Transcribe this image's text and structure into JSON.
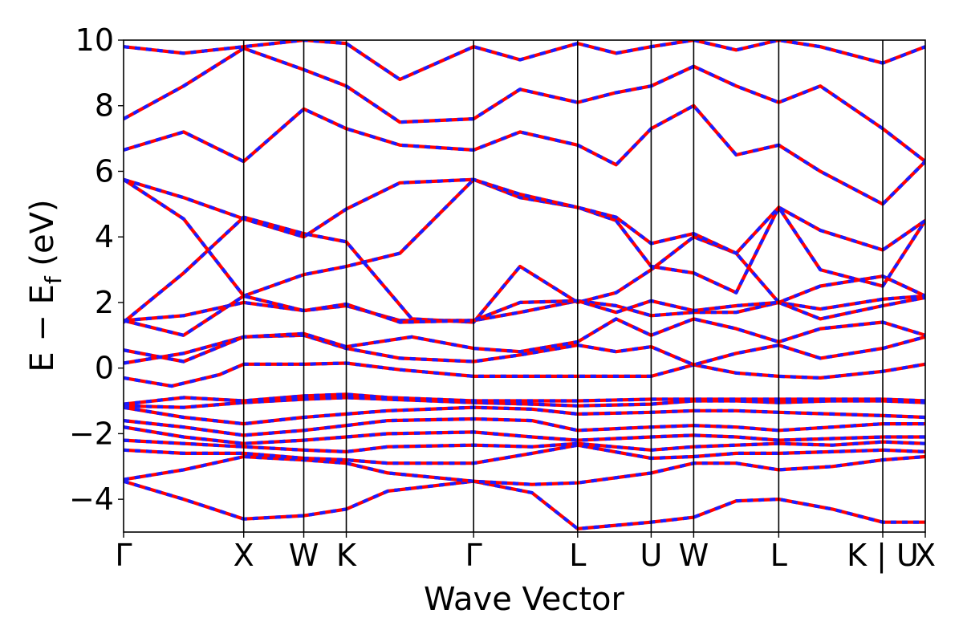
{
  "chart_data": {
    "type": "line",
    "xlabel": "Wave Vector",
    "ylabel": "E − E",
    "ylabel_sub": "f",
    "ylabel_unit": " (eV)",
    "ylim": [
      -5,
      10
    ],
    "yticks": [
      10,
      8,
      6,
      4,
      2,
      0,
      -2,
      -4
    ],
    "ytick_labels": [
      "10",
      "8",
      "6",
      "4",
      "2",
      "0",
      "−2",
      "−4"
    ],
    "grid": false,
    "k_points": [
      {
        "label": "Γ",
        "pos": 0.0
      },
      {
        "label": "X",
        "pos": 1.0
      },
      {
        "label": "W",
        "pos": 1.5
      },
      {
        "label": "K",
        "pos": 1.854
      },
      {
        "label": "Γ",
        "pos": 2.914
      },
      {
        "label": "L",
        "pos": 3.78
      },
      {
        "label": "U",
        "pos": 4.392
      },
      {
        "label": "W",
        "pos": 4.746
      },
      {
        "label": "L",
        "pos": 5.454
      },
      {
        "label": "K | U",
        "pos": 6.32
      },
      {
        "label": "X",
        "pos": 6.674
      }
    ],
    "series_style": {
      "line": "#ff0000",
      "overlay_dashed": "#1b1bff"
    },
    "bands": [
      {
        "x": [
          0,
          0.5,
          1.0,
          1.5,
          1.854,
          2.2,
          2.914,
          3.4,
          3.78,
          4.392,
          4.746,
          5.1,
          5.454,
          5.9,
          6.32,
          6.674
        ],
        "y": [
          -3.45,
          -4.0,
          -4.6,
          -4.5,
          -4.3,
          -3.75,
          -3.45,
          -3.8,
          -4.9,
          -4.7,
          -4.55,
          -4.05,
          -4.0,
          -4.3,
          -4.7,
          -4.7
        ]
      },
      {
        "x": [
          0,
          0.5,
          1.0,
          1.5,
          1.854,
          2.2,
          2.914,
          3.4,
          3.78,
          4.392,
          4.746,
          5.1,
          5.454,
          5.9,
          6.32,
          6.674
        ],
        "y": [
          -3.4,
          -3.1,
          -2.7,
          -2.8,
          -2.9,
          -3.2,
          -3.45,
          -3.55,
          -3.5,
          -3.2,
          -2.9,
          -2.9,
          -3.1,
          -3.0,
          -2.8,
          -2.7
        ]
      },
      {
        "x": [
          0,
          0.5,
          1.0,
          1.5,
          1.854,
          2.2,
          2.914,
          3.4,
          3.78,
          4.392,
          4.746,
          5.1,
          5.454,
          5.9,
          6.32,
          6.674
        ],
        "y": [
          -2.5,
          -2.6,
          -2.6,
          -2.75,
          -2.8,
          -2.9,
          -2.9,
          -2.6,
          -2.35,
          -2.75,
          -2.7,
          -2.6,
          -2.6,
          -2.55,
          -2.5,
          -2.55
        ]
      },
      {
        "x": [
          0,
          0.5,
          1.0,
          1.5,
          1.854,
          2.2,
          2.914,
          3.4,
          3.78,
          4.392,
          4.746,
          5.1,
          5.454,
          5.9,
          6.32,
          6.674
        ],
        "y": [
          -2.2,
          -2.3,
          -2.4,
          -2.5,
          -2.55,
          -2.4,
          -2.35,
          -2.4,
          -2.3,
          -2.5,
          -2.4,
          -2.35,
          -2.3,
          -2.35,
          -2.25,
          -2.3
        ]
      },
      {
        "x": [
          0,
          0.5,
          1.0,
          1.5,
          1.854,
          2.2,
          2.914,
          3.4,
          3.78,
          4.392,
          4.746,
          5.1,
          5.454,
          5.9,
          6.32,
          6.674
        ],
        "y": [
          -1.8,
          -2.1,
          -2.3,
          -2.2,
          -2.1,
          -2.0,
          -1.95,
          -2.1,
          -2.2,
          -2.1,
          -2.05,
          -2.1,
          -2.2,
          -2.15,
          -2.1,
          -2.1
        ]
      },
      {
        "x": [
          0,
          0.5,
          1.0,
          1.5,
          1.854,
          2.2,
          2.914,
          3.4,
          3.78,
          4.392,
          4.746,
          5.1,
          5.454,
          5.9,
          6.32,
          6.674
        ],
        "y": [
          -1.6,
          -1.8,
          -2.05,
          -1.9,
          -1.75,
          -1.6,
          -1.55,
          -1.6,
          -1.9,
          -1.8,
          -1.75,
          -1.8,
          -1.9,
          -1.8,
          -1.7,
          -1.7
        ]
      },
      {
        "x": [
          0,
          0.5,
          1.0,
          1.5,
          1.854,
          2.2,
          2.914,
          3.4,
          3.78,
          4.392,
          4.746,
          5.1,
          5.454,
          5.9,
          6.32,
          6.674
        ],
        "y": [
          -1.2,
          -1.5,
          -1.7,
          -1.5,
          -1.4,
          -1.3,
          -1.2,
          -1.25,
          -1.4,
          -1.35,
          -1.3,
          -1.3,
          -1.35,
          -1.4,
          -1.45,
          -1.5
        ]
      },
      {
        "x": [
          0,
          0.5,
          1.0,
          1.5,
          1.854,
          2.2,
          2.914,
          3.4,
          3.78,
          4.392,
          4.746,
          5.1,
          5.454,
          5.9,
          6.32,
          6.674
        ],
        "y": [
          -1.15,
          -1.2,
          -1.05,
          -0.95,
          -0.9,
          -0.95,
          -1.05,
          -1.1,
          -1.15,
          -1.1,
          -1.0,
          -1.0,
          -1.05,
          -1.0,
          -1.0,
          -1.05
        ]
      },
      {
        "x": [
          0,
          0.5,
          1.0,
          1.5,
          1.854,
          2.2,
          2.914,
          3.4,
          3.78,
          4.392,
          4.746,
          5.1,
          5.454,
          5.9,
          6.32,
          6.674
        ],
        "y": [
          -1.1,
          -0.9,
          -1.0,
          -0.85,
          -0.8,
          -0.9,
          -1.0,
          -1.0,
          -1.0,
          -0.95,
          -0.95,
          -0.95,
          -0.95,
          -0.95,
          -0.95,
          -1.0
        ]
      },
      {
        "x": [
          0,
          0.4,
          0.8,
          1.0,
          1.5,
          1.854,
          2.3,
          2.914,
          3.3,
          3.78,
          4.1,
          4.392,
          4.746,
          5.1,
          5.454,
          5.8,
          6.32,
          6.674
        ],
        "y": [
          -0.3,
          -0.55,
          -0.2,
          0.12,
          0.12,
          0.15,
          -0.05,
          -0.25,
          -0.25,
          -0.25,
          -0.25,
          -0.25,
          0.1,
          -0.15,
          -0.25,
          -0.3,
          -0.1,
          0.12
        ]
      },
      {
        "x": [
          0,
          0.5,
          1.0,
          1.5,
          1.854,
          2.3,
          2.914,
          3.3,
          3.78,
          4.1,
          4.392,
          4.746,
          5.1,
          5.454,
          5.8,
          6.32,
          6.674
        ],
        "y": [
          0.15,
          0.45,
          0.95,
          1.0,
          0.6,
          0.3,
          0.2,
          0.4,
          0.7,
          0.5,
          0.65,
          0.1,
          0.45,
          0.7,
          0.3,
          0.6,
          0.95
        ]
      },
      {
        "x": [
          0,
          0.5,
          1.0,
          1.5,
          1.854,
          2.4,
          2.914,
          3.3,
          3.78,
          4.1,
          4.392,
          4.746,
          5.1,
          5.454,
          5.8,
          6.32,
          6.674
        ],
        "y": [
          0.55,
          0.2,
          0.95,
          1.05,
          0.65,
          0.95,
          0.6,
          0.5,
          0.8,
          1.5,
          1.0,
          1.5,
          1.2,
          0.8,
          1.2,
          1.4,
          1.0
        ]
      },
      {
        "x": [
          0,
          0.5,
          1.0,
          1.5,
          1.854,
          2.3,
          2.914,
          3.3,
          3.78,
          4.1,
          4.392,
          4.746,
          5.1,
          5.454,
          5.8,
          6.32,
          6.674
        ],
        "y": [
          1.45,
          1.6,
          2.0,
          1.75,
          1.9,
          1.45,
          1.45,
          1.7,
          2.05,
          1.9,
          1.6,
          1.7,
          1.7,
          2.0,
          1.8,
          2.1,
          2.2
        ]
      },
      {
        "x": [
          0,
          0.5,
          1.0,
          1.5,
          1.854,
          2.4,
          2.914,
          3.3,
          3.78,
          4.1,
          4.392,
          4.746,
          5.1,
          5.454,
          5.8,
          6.32,
          6.674
        ],
        "y": [
          1.4,
          2.9,
          4.6,
          4.1,
          3.85,
          1.5,
          1.4,
          3.1,
          2.0,
          2.3,
          3.0,
          4.0,
          3.5,
          2.0,
          2.5,
          2.8,
          2.2
        ]
      },
      {
        "x": [
          0,
          0.5,
          1.0,
          1.5,
          1.854,
          2.3,
          2.914,
          3.3,
          3.78,
          4.1,
          4.392,
          4.746,
          5.1,
          5.454,
          5.8,
          6.32,
          6.674
        ],
        "y": [
          5.75,
          4.55,
          2.2,
          2.85,
          3.1,
          3.5,
          5.75,
          5.2,
          4.9,
          4.5,
          3.1,
          2.9,
          2.3,
          4.9,
          3.0,
          2.5,
          4.5
        ]
      },
      {
        "x": [
          0,
          0.5,
          1.0,
          1.5,
          1.854,
          2.3,
          2.914,
          3.3,
          3.78,
          4.1,
          4.392,
          4.746,
          5.1,
          5.454,
          5.8,
          6.32,
          6.674
        ],
        "y": [
          5.75,
          5.2,
          4.55,
          4.0,
          4.85,
          5.65,
          5.75,
          5.3,
          4.9,
          4.6,
          3.8,
          4.1,
          3.5,
          4.9,
          4.2,
          3.6,
          4.5
        ]
      },
      {
        "x": [
          0,
          0.5,
          1.0,
          1.5,
          1.854,
          2.3,
          2.914,
          3.3,
          3.78,
          4.1,
          4.392,
          4.746,
          5.1,
          5.454,
          5.8,
          6.32,
          6.674
        ],
        "y": [
          6.65,
          7.2,
          6.3,
          7.9,
          7.3,
          6.8,
          6.65,
          7.2,
          6.8,
          6.2,
          7.3,
          8.0,
          6.5,
          6.8,
          6.0,
          5.0,
          6.3
        ]
      },
      {
        "x": [
          0,
          0.5,
          1.0,
          1.5,
          1.854,
          2.3,
          2.914,
          3.3,
          3.78,
          4.1,
          4.392,
          4.746,
          5.1,
          5.454,
          5.8,
          6.32,
          6.674
        ],
        "y": [
          7.6,
          8.6,
          9.75,
          9.1,
          8.6,
          7.5,
          7.6,
          8.5,
          8.1,
          8.4,
          8.6,
          9.2,
          8.6,
          8.1,
          8.6,
          7.3,
          6.3
        ]
      },
      {
        "x": [
          0,
          0.5,
          1.0,
          1.5,
          1.854,
          2.3,
          2.914,
          3.3,
          3.78,
          4.1,
          4.392,
          4.746,
          5.1,
          5.454,
          5.8,
          6.32,
          6.674
        ],
        "y": [
          9.8,
          9.6,
          9.8,
          10.0,
          9.9,
          8.8,
          9.8,
          9.4,
          9.9,
          9.6,
          9.8,
          10.0,
          9.7,
          10.0,
          9.8,
          9.3,
          9.8
        ]
      },
      {
        "x": [
          0,
          0.5,
          1.0,
          1.5,
          1.854,
          2.3,
          2.914,
          3.3,
          3.78,
          4.1,
          4.392,
          4.746,
          5.1,
          5.454,
          5.8,
          6.32,
          6.674
        ],
        "y": [
          1.45,
          1.0,
          2.2,
          1.75,
          1.95,
          1.4,
          1.45,
          2.0,
          2.05,
          1.7,
          2.05,
          1.75,
          1.9,
          2.0,
          1.5,
          1.9,
          2.15
        ]
      }
    ]
  }
}
